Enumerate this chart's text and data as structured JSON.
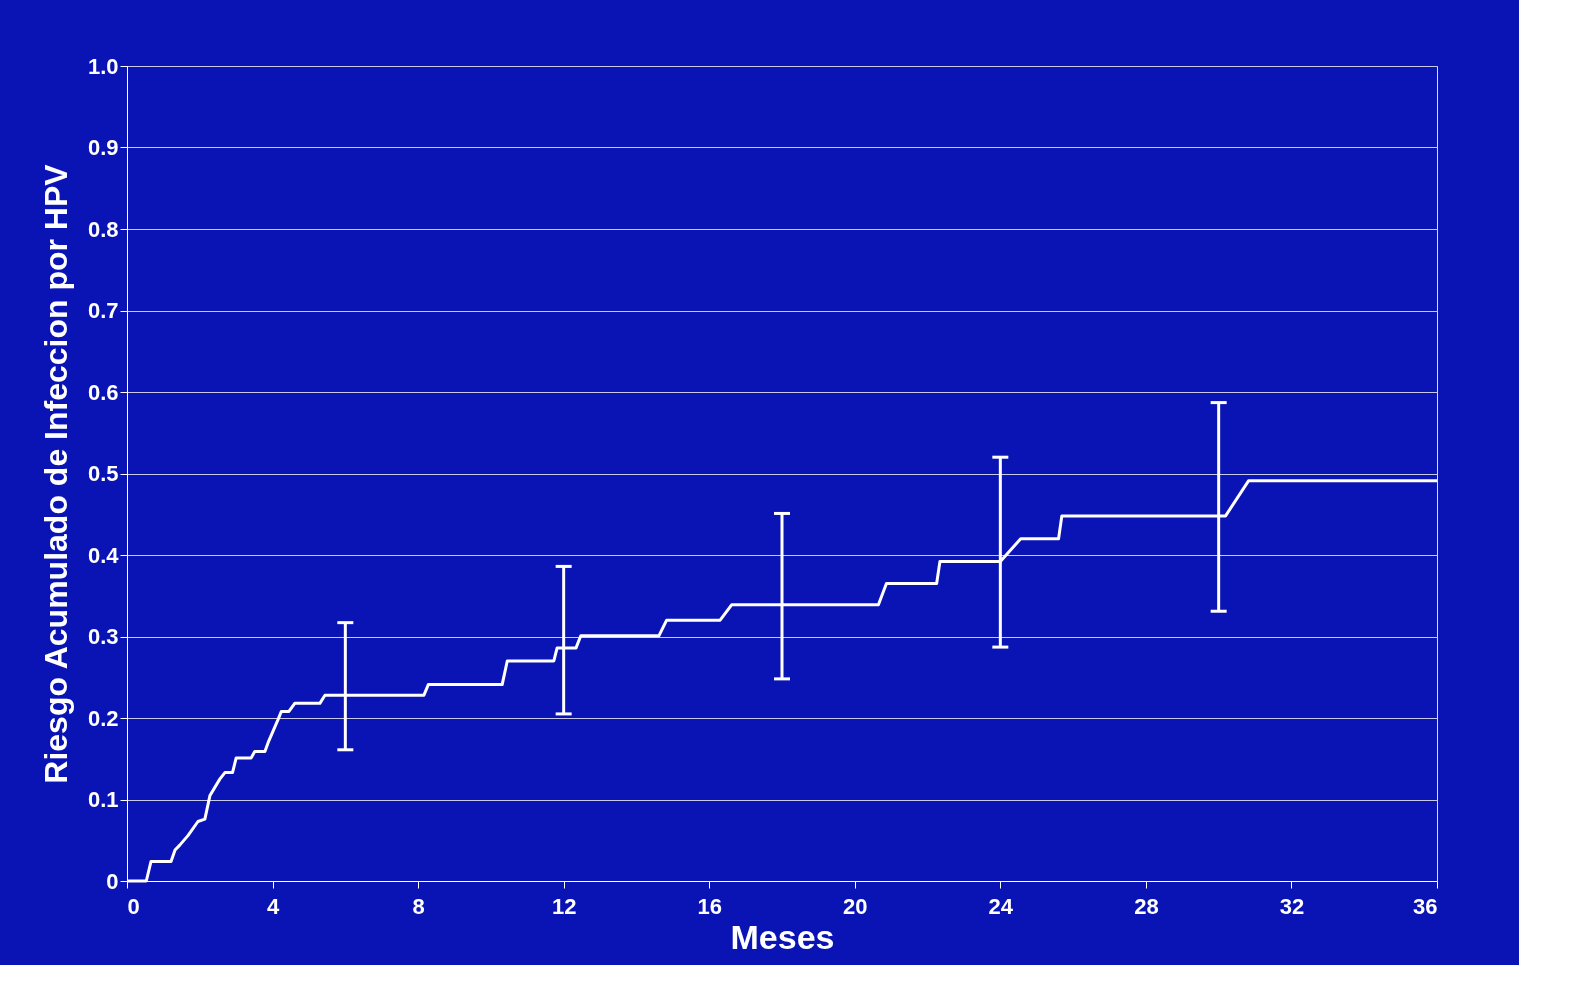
{
  "chart_data": {
    "type": "line",
    "xlabel": "Meses",
    "ylabel": "Riesgo Acumulado de Infeccion por HPV",
    "xlim": [
      0,
      36
    ],
    "xticks": [
      0,
      4,
      8,
      12,
      16,
      20,
      24,
      28,
      32,
      36
    ],
    "ylim": [
      0,
      1
    ],
    "yticks": [
      0,
      0.1,
      0.2,
      0.3,
      0.4,
      0.5,
      0.6,
      0.7,
      0.8,
      0.9,
      {
        "value": 1,
        "label": "1.0"
      }
    ],
    "grid": "y",
    "line_style": "solid",
    "marker": "none",
    "series": [
      {
        "color": "#ffffff",
        "x": [
          0,
          0.53,
          0.66,
          1.21,
          1.32,
          1.45,
          1.68,
          1.95,
          2.14,
          2.28,
          2.55,
          2.69,
          2.9,
          3.0,
          3.41,
          3.51,
          3.79,
          3.88,
          4.15,
          4.24,
          4.45,
          4.61,
          5.3,
          5.44,
          6,
          8.16,
          8.28,
          10.31,
          10.45,
          11.73,
          11.82,
          12,
          12.34,
          12.47,
          14.62,
          14.83,
          16.3,
          16.62,
          18,
          20.65,
          20.87,
          22.25,
          22.34,
          23.99,
          24,
          24.56,
          25.6,
          25.69,
          30,
          30.19,
          30.82,
          36
        ],
        "values": [
          0,
          0,
          0.024,
          0.024,
          0.038,
          0.044,
          0.056,
          0.073,
          0.076,
          0.105,
          0.125,
          0.133,
          0.133,
          0.151,
          0.151,
          0.159,
          0.159,
          0.17,
          0.198,
          0.208,
          0.208,
          0.218,
          0.218,
          0.228,
          0.228,
          0.228,
          0.241,
          0.241,
          0.27,
          0.27,
          0.286,
          0.286,
          0.286,
          0.301,
          0.301,
          0.32,
          0.32,
          0.339,
          0.339,
          0.339,
          0.365,
          0.365,
          0.392,
          0.392,
          0.392,
          0.42,
          0.42,
          0.448,
          0.448,
          0.448,
          0.491,
          0.491
        ],
        "errors": [
          null,
          null,
          null,
          null,
          null,
          null,
          null,
          null,
          null,
          null,
          null,
          null,
          null,
          null,
          null,
          null,
          null,
          null,
          null,
          null,
          null,
          null,
          null,
          null,
          [
            0.161,
            0.317
          ],
          null,
          null,
          null,
          null,
          null,
          null,
          [
            0.205,
            0.386
          ],
          null,
          null,
          null,
          null,
          null,
          null,
          [
            0.248,
            0.451
          ],
          null,
          null,
          null,
          null,
          null,
          [
            0.287,
            0.52
          ],
          null,
          null,
          null,
          [
            0.331,
            0.587
          ],
          null,
          null,
          null
        ]
      }
    ]
  }
}
